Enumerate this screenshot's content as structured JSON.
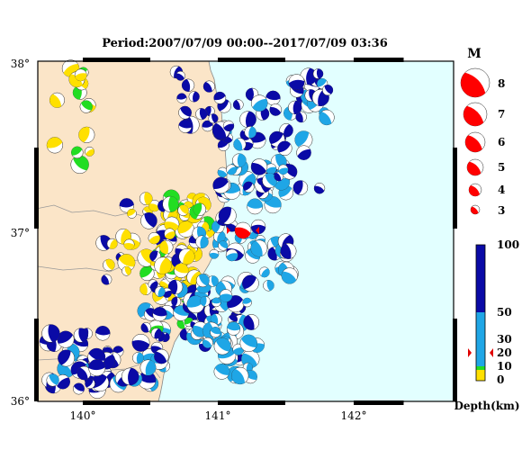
{
  "title": "Period:2007/07/09 00:00--2017/07/09 03:36",
  "axes": {
    "lat_ticks": [
      "38°",
      "37°",
      "36°"
    ],
    "lon_ticks": [
      "140°",
      "141°",
      "142°"
    ]
  },
  "magnitude_legend": {
    "header": "M",
    "levels": [
      "8",
      "7",
      "6",
      "5",
      "4",
      "3"
    ]
  },
  "depth_legend": {
    "title": "Depth(km)",
    "ticks": [
      "100",
      "50",
      "30",
      "20",
      "10",
      "0"
    ],
    "colors": {
      "0-10": "#ffe000",
      "10-20": "#22dd22",
      "20-50": "#1fa6e6",
      "50-100": "#0a0aa6"
    }
  },
  "map_colors": {
    "land": "#fbe5c8",
    "sea": "#e2ffff",
    "mainshock": "#ff0000"
  }
}
